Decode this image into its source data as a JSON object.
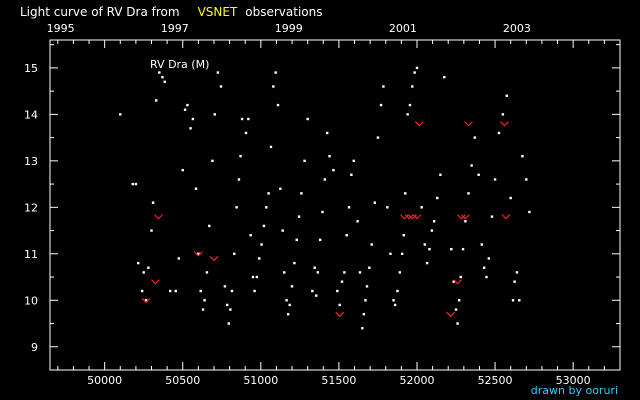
{
  "title": {
    "prefix": "Light curve of RV Dra from",
    "source": "VSNET",
    "suffix": "observations"
  },
  "credit": "drawn by ooruri",
  "colors": {
    "background": "#000000",
    "axes": "#ffffff",
    "observation": "#ffffff",
    "fainter_than": "#ff2020",
    "title_highlight": "#ffff00",
    "credit": "#33ccff"
  },
  "chart_data": {
    "type": "scatter",
    "label": "RV Dra (M)",
    "xlabel": "",
    "ylabel": "",
    "xlim": [
      49650,
      53300
    ],
    "ylim": [
      15.6,
      8.5
    ],
    "x_ticks": [
      "50000",
      "50500",
      "51000",
      "51500",
      "52000",
      "52500",
      "53000"
    ],
    "x_tick_values": [
      50000,
      50500,
      51000,
      51500,
      52000,
      52500,
      53000
    ],
    "top_ticks": [
      "1995",
      "1997",
      "1999",
      "2001",
      "2003"
    ],
    "top_tick_values": [
      49718,
      50449,
      51179,
      51910,
      52640
    ],
    "y_ticks": [
      "9",
      "10",
      "11",
      "12",
      "13",
      "14",
      "15"
    ],
    "y_tick_values": [
      9,
      10,
      11,
      12,
      13,
      14,
      15
    ],
    "grid": false,
    "series": [
      {
        "marker": "dot",
        "points": [
          [
            50100,
            14.0
          ],
          [
            50180,
            12.5
          ],
          [
            50200,
            12.5
          ],
          [
            50215,
            10.8
          ],
          [
            50240,
            10.2
          ],
          [
            50250,
            10.6
          ],
          [
            50265,
            10.0
          ],
          [
            50280,
            10.7
          ],
          [
            50300,
            11.5
          ],
          [
            50310,
            12.1
          ],
          [
            50330,
            14.3
          ],
          [
            50350,
            14.9
          ],
          [
            50370,
            14.8
          ],
          [
            50385,
            14.7
          ],
          [
            50420,
            10.2
          ],
          [
            50455,
            10.2
          ],
          [
            50475,
            10.9
          ],
          [
            50500,
            12.8
          ],
          [
            50515,
            14.1
          ],
          [
            50530,
            14.2
          ],
          [
            50550,
            13.7
          ],
          [
            50565,
            13.9
          ],
          [
            50585,
            12.4
          ],
          [
            50600,
            11.0
          ],
          [
            50615,
            10.2
          ],
          [
            50630,
            9.8
          ],
          [
            50640,
            10.0
          ],
          [
            50655,
            10.6
          ],
          [
            50670,
            11.6
          ],
          [
            50690,
            13.0
          ],
          [
            50705,
            14.0
          ],
          [
            50725,
            14.9
          ],
          [
            50745,
            14.6
          ],
          [
            50770,
            10.3
          ],
          [
            50785,
            9.9
          ],
          [
            50795,
            9.5
          ],
          [
            50805,
            9.8
          ],
          [
            50815,
            10.2
          ],
          [
            50830,
            11.0
          ],
          [
            50845,
            12.0
          ],
          [
            50860,
            12.6
          ],
          [
            50870,
            13.1
          ],
          [
            50880,
            13.9
          ],
          [
            50905,
            13.6
          ],
          [
            50920,
            13.9
          ],
          [
            50935,
            11.4
          ],
          [
            50950,
            10.5
          ],
          [
            50960,
            10.2
          ],
          [
            50975,
            10.5
          ],
          [
            50990,
            10.9
          ],
          [
            51005,
            11.2
          ],
          [
            51020,
            11.6
          ],
          [
            51035,
            12.0
          ],
          [
            51050,
            12.3
          ],
          [
            51065,
            13.3
          ],
          [
            51080,
            14.6
          ],
          [
            51095,
            14.9
          ],
          [
            51110,
            14.2
          ],
          [
            51125,
            12.4
          ],
          [
            51140,
            11.5
          ],
          [
            51150,
            10.6
          ],
          [
            51165,
            10.0
          ],
          [
            51175,
            9.7
          ],
          [
            51185,
            9.9
          ],
          [
            51200,
            10.3
          ],
          [
            51215,
            10.8
          ],
          [
            51230,
            11.3
          ],
          [
            51245,
            11.8
          ],
          [
            51260,
            12.3
          ],
          [
            51280,
            13.0
          ],
          [
            51300,
            13.9
          ],
          [
            51330,
            10.2
          ],
          [
            51345,
            10.7
          ],
          [
            51355,
            10.1
          ],
          [
            51365,
            10.6
          ],
          [
            51380,
            11.3
          ],
          [
            51395,
            11.9
          ],
          [
            51410,
            12.6
          ],
          [
            51425,
            13.6
          ],
          [
            51440,
            13.1
          ],
          [
            51465,
            12.8
          ],
          [
            51490,
            10.2
          ],
          [
            51505,
            9.9
          ],
          [
            51520,
            10.4
          ],
          [
            51535,
            10.6
          ],
          [
            51550,
            11.4
          ],
          [
            51565,
            12.0
          ],
          [
            51580,
            12.7
          ],
          [
            51595,
            13.0
          ],
          [
            51620,
            11.7
          ],
          [
            51635,
            10.6
          ],
          [
            51650,
            9.4
          ],
          [
            51660,
            9.7
          ],
          [
            51670,
            10.0
          ],
          [
            51680,
            10.3
          ],
          [
            51695,
            10.7
          ],
          [
            51710,
            11.2
          ],
          [
            51730,
            12.1
          ],
          [
            51750,
            13.5
          ],
          [
            51770,
            14.2
          ],
          [
            51785,
            14.6
          ],
          [
            51810,
            12.0
          ],
          [
            51830,
            11.0
          ],
          [
            51850,
            10.0
          ],
          [
            51860,
            9.9
          ],
          [
            51875,
            10.2
          ],
          [
            51890,
            10.6
          ],
          [
            51905,
            11.0
          ],
          [
            51915,
            11.4
          ],
          [
            51925,
            12.3
          ],
          [
            51940,
            14.0
          ],
          [
            51955,
            14.2
          ],
          [
            51970,
            14.6
          ],
          [
            51985,
            14.9
          ],
          [
            52000,
            15.0
          ],
          [
            52030,
            12.0
          ],
          [
            52050,
            11.2
          ],
          [
            52065,
            10.8
          ],
          [
            52080,
            11.1
          ],
          [
            52095,
            11.5
          ],
          [
            52110,
            11.7
          ],
          [
            52130,
            12.2
          ],
          [
            52150,
            12.7
          ],
          [
            52175,
            14.8
          ],
          [
            52220,
            11.1
          ],
          [
            52235,
            10.4
          ],
          [
            52250,
            9.8
          ],
          [
            52260,
            9.5
          ],
          [
            52270,
            10.0
          ],
          [
            52280,
            10.5
          ],
          [
            52295,
            11.1
          ],
          [
            52310,
            11.7
          ],
          [
            52330,
            12.3
          ],
          [
            52350,
            12.9
          ],
          [
            52370,
            13.5
          ],
          [
            52395,
            12.7
          ],
          [
            52415,
            11.2
          ],
          [
            52430,
            10.7
          ],
          [
            52445,
            10.5
          ],
          [
            52460,
            10.9
          ],
          [
            52480,
            11.8
          ],
          [
            52500,
            12.6
          ],
          [
            52525,
            13.6
          ],
          [
            52550,
            14.0
          ],
          [
            52575,
            14.4
          ],
          [
            52600,
            12.2
          ],
          [
            52615,
            10.0
          ],
          [
            52625,
            10.4
          ],
          [
            52640,
            10.6
          ],
          [
            52655,
            10.0
          ],
          [
            52675,
            13.1
          ],
          [
            52700,
            12.6
          ],
          [
            52720,
            11.9
          ]
        ]
      },
      {
        "marker": "v",
        "points": [
          [
            50265,
            10.0
          ],
          [
            50325,
            10.4
          ],
          [
            50345,
            11.8
          ],
          [
            50600,
            11.0
          ],
          [
            50700,
            10.9
          ],
          [
            51505,
            9.7
          ],
          [
            51920,
            11.8
          ],
          [
            51950,
            11.8
          ],
          [
            51970,
            11.8
          ],
          [
            52000,
            11.8
          ],
          [
            52015,
            13.8
          ],
          [
            52215,
            9.7
          ],
          [
            52260,
            10.4
          ],
          [
            52285,
            11.8
          ],
          [
            52310,
            11.8
          ],
          [
            52330,
            13.8
          ],
          [
            52560,
            13.8
          ],
          [
            52570,
            11.8
          ]
        ]
      }
    ]
  }
}
